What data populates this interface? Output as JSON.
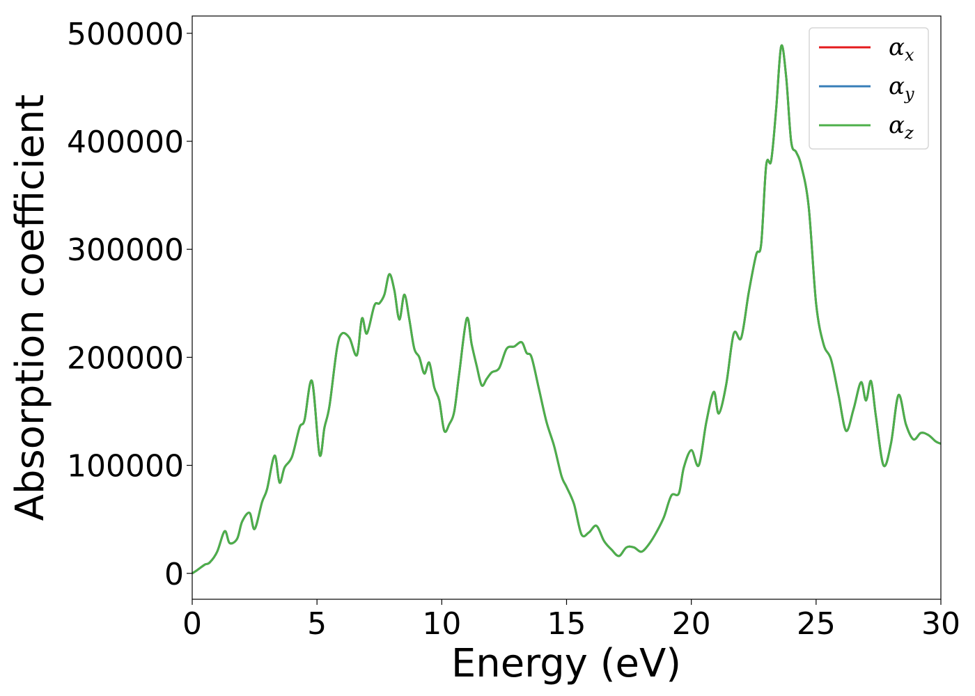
{
  "chart_data": {
    "type": "line",
    "xlabel": "Energy (eV)",
    "ylabel": "Absorption coefficient",
    "xlim": [
      0,
      30
    ],
    "ylim": [
      -24000,
      516000
    ],
    "xticks": [
      "0",
      "5",
      "10",
      "15",
      "20",
      "25",
      "30"
    ],
    "yticks": [
      "0",
      "100000",
      "200000",
      "300000",
      "400000",
      "500000"
    ],
    "grid": false,
    "legend_position": "top-right",
    "series": [
      {
        "name": "α",
        "sub": "x",
        "color": "#e41a1c"
      },
      {
        "name": "α",
        "sub": "y",
        "color": "#377eb8"
      },
      {
        "name": "α",
        "sub": "z",
        "color": "#4daf4a"
      }
    ],
    "x": [
      0,
      0.2,
      0.5,
      0.7,
      1.0,
      1.3,
      1.5,
      1.8,
      2.0,
      2.3,
      2.5,
      2.8,
      3.0,
      3.3,
      3.5,
      3.7,
      4.0,
      4.3,
      4.5,
      4.8,
      5.1,
      5.3,
      5.5,
      5.8,
      6.0,
      6.3,
      6.6,
      6.8,
      7.0,
      7.3,
      7.5,
      7.7,
      7.9,
      8.1,
      8.3,
      8.5,
      8.7,
      8.9,
      9.1,
      9.3,
      9.5,
      9.7,
      9.9,
      10.1,
      10.3,
      10.5,
      10.7,
      11.0,
      11.2,
      11.4,
      11.6,
      11.8,
      12.0,
      12.3,
      12.6,
      12.9,
      13.2,
      13.4,
      13.6,
      13.9,
      14.2,
      14.5,
      14.8,
      15.0,
      15.3,
      15.6,
      15.9,
      16.2,
      16.5,
      16.8,
      17.1,
      17.4,
      17.7,
      18.0,
      18.3,
      18.6,
      18.9,
      19.2,
      19.5,
      19.7,
      20.0,
      20.3,
      20.6,
      20.9,
      21.1,
      21.4,
      21.7,
      22.0,
      22.3,
      22.6,
      22.8,
      23.0,
      23.2,
      23.4,
      23.6,
      23.8,
      24.0,
      24.2,
      24.4,
      24.7,
      25.0,
      25.3,
      25.6,
      25.9,
      26.2,
      26.5,
      26.8,
      27.0,
      27.2,
      27.4,
      27.7,
      28.0,
      28.3,
      28.6,
      28.9,
      29.2,
      29.5,
      29.8,
      30.0
    ],
    "y": [
      0,
      3000,
      8000,
      10000,
      20000,
      39000,
      28000,
      32000,
      48000,
      56000,
      41000,
      66000,
      78000,
      109000,
      84000,
      98000,
      108000,
      135000,
      142000,
      178000,
      110000,
      135000,
      155000,
      208000,
      222000,
      218000,
      202000,
      236000,
      222000,
      248000,
      250000,
      258000,
      277000,
      262000,
      235000,
      258000,
      235000,
      208000,
      200000,
      185000,
      195000,
      172000,
      160000,
      132000,
      138000,
      150000,
      185000,
      236000,
      212000,
      192000,
      174000,
      180000,
      186000,
      190000,
      208000,
      210000,
      214000,
      204000,
      200000,
      170000,
      140000,
      118000,
      90000,
      80000,
      64000,
      36000,
      38000,
      44000,
      30000,
      22000,
      16000,
      24000,
      24000,
      20000,
      27000,
      38000,
      52000,
      72000,
      74000,
      98000,
      114000,
      100000,
      140000,
      168000,
      148000,
      175000,
      222000,
      218000,
      260000,
      295000,
      305000,
      378000,
      382000,
      430000,
      488000,
      460000,
      400000,
      390000,
      378000,
      340000,
      250000,
      212000,
      198000,
      165000,
      132000,
      152000,
      177000,
      160000,
      178000,
      145000,
      100000,
      120000,
      165000,
      138000,
      124000,
      130000,
      128000,
      122000,
      120000
    ]
  }
}
